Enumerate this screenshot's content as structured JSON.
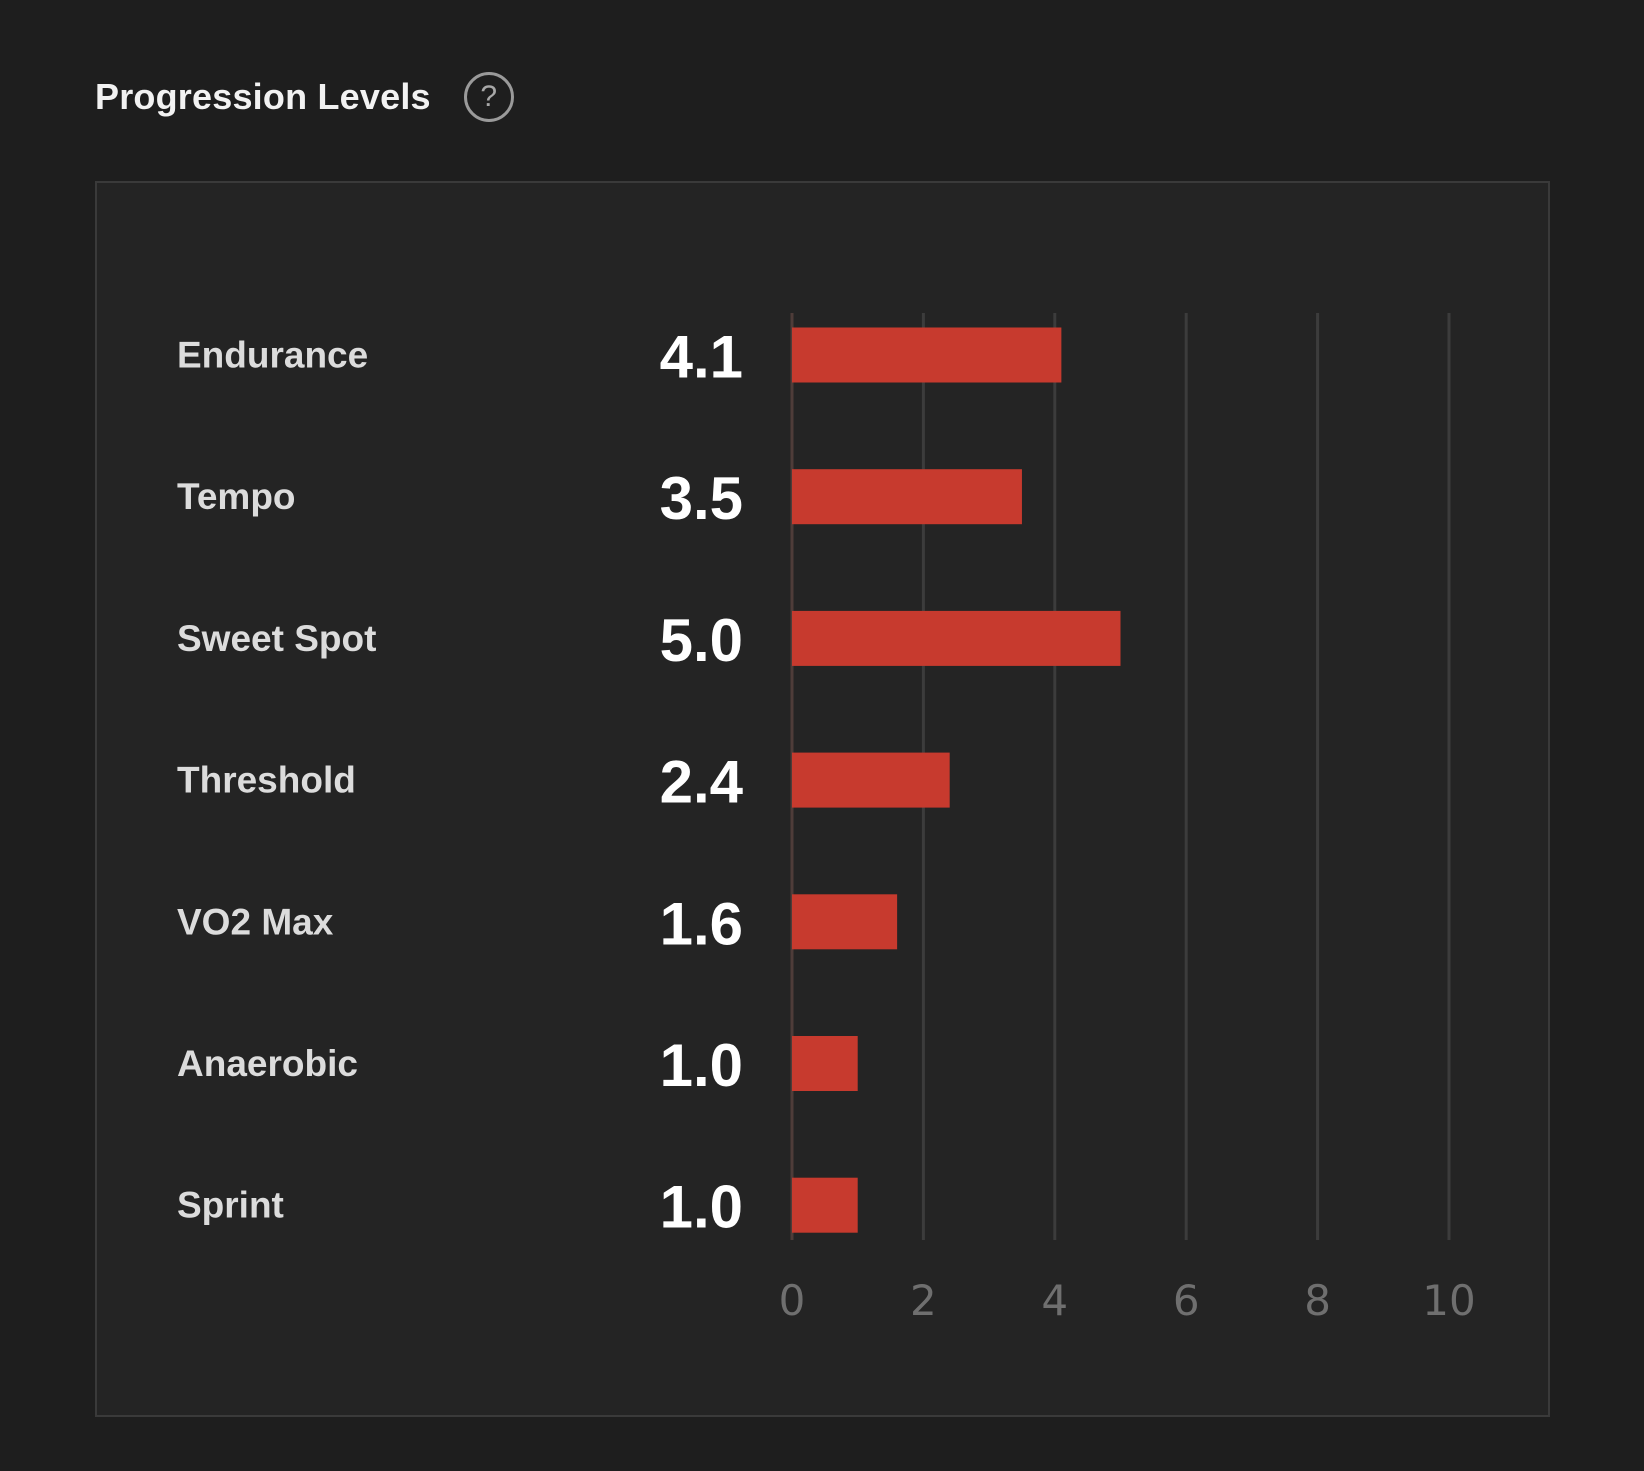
{
  "header": {
    "title": "Progression Levels",
    "help_glyph": "?",
    "help_icon": "question-circle-icon"
  },
  "chart_data": {
    "type": "bar",
    "orientation": "horizontal",
    "title": "",
    "xlabel": "",
    "ylabel": "",
    "categories": [
      "Endurance",
      "Tempo",
      "Sweet Spot",
      "Threshold",
      "VO2 Max",
      "Anaerobic",
      "Sprint"
    ],
    "values": [
      4.1,
      3.5,
      5.0,
      2.4,
      1.6,
      1.0,
      1.0
    ],
    "value_labels": [
      "4.1",
      "3.5",
      "5.0",
      "2.4",
      "1.6",
      "1.0",
      "1.0"
    ],
    "xlim": [
      0,
      10
    ],
    "ticks": [
      0,
      2,
      4,
      6,
      8,
      10
    ],
    "grid": true,
    "legend": "none",
    "colors": {
      "bar": "#c73a2e",
      "grid": "#3c3c3c",
      "axis": "#4e3c39",
      "background": "#242424"
    }
  }
}
